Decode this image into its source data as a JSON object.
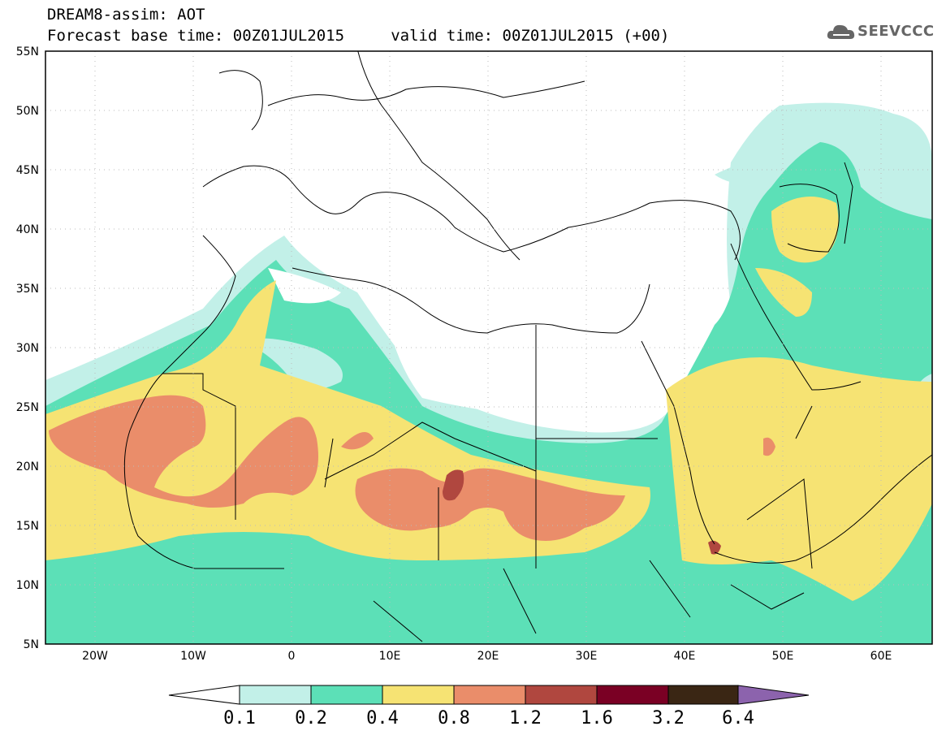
{
  "header": {
    "title_line1": "DREAM8-assim: AOT",
    "title_line2": "Forecast base time: 00Z01JUL2015     valid time: 00Z01JUL2015 (+00)"
  },
  "logo": {
    "text": "SEEVCCC",
    "icon": "cloud-icon",
    "color": "#666666"
  },
  "map": {
    "latitude_ticks": [
      "55N",
      "50N",
      "45N",
      "40N",
      "35N",
      "30N",
      "25N",
      "20N",
      "15N",
      "10N",
      "5N"
    ],
    "longitude_ticks": [
      "20W",
      "10W",
      "0",
      "10E",
      "20E",
      "30E",
      "40E",
      "50E",
      "60E"
    ]
  },
  "colorbar": {
    "labels": [
      "0.1",
      "0.2",
      "0.4",
      "0.8",
      "1.2",
      "1.6",
      "3.2",
      "6.4"
    ],
    "colors": [
      "#ffffff",
      "#c2f0e8",
      "#5ce0b7",
      "#f6e373",
      "#ea8d6a",
      "#b0473f",
      "#7a0024",
      "#3a2614",
      "#8c63ad"
    ]
  }
}
